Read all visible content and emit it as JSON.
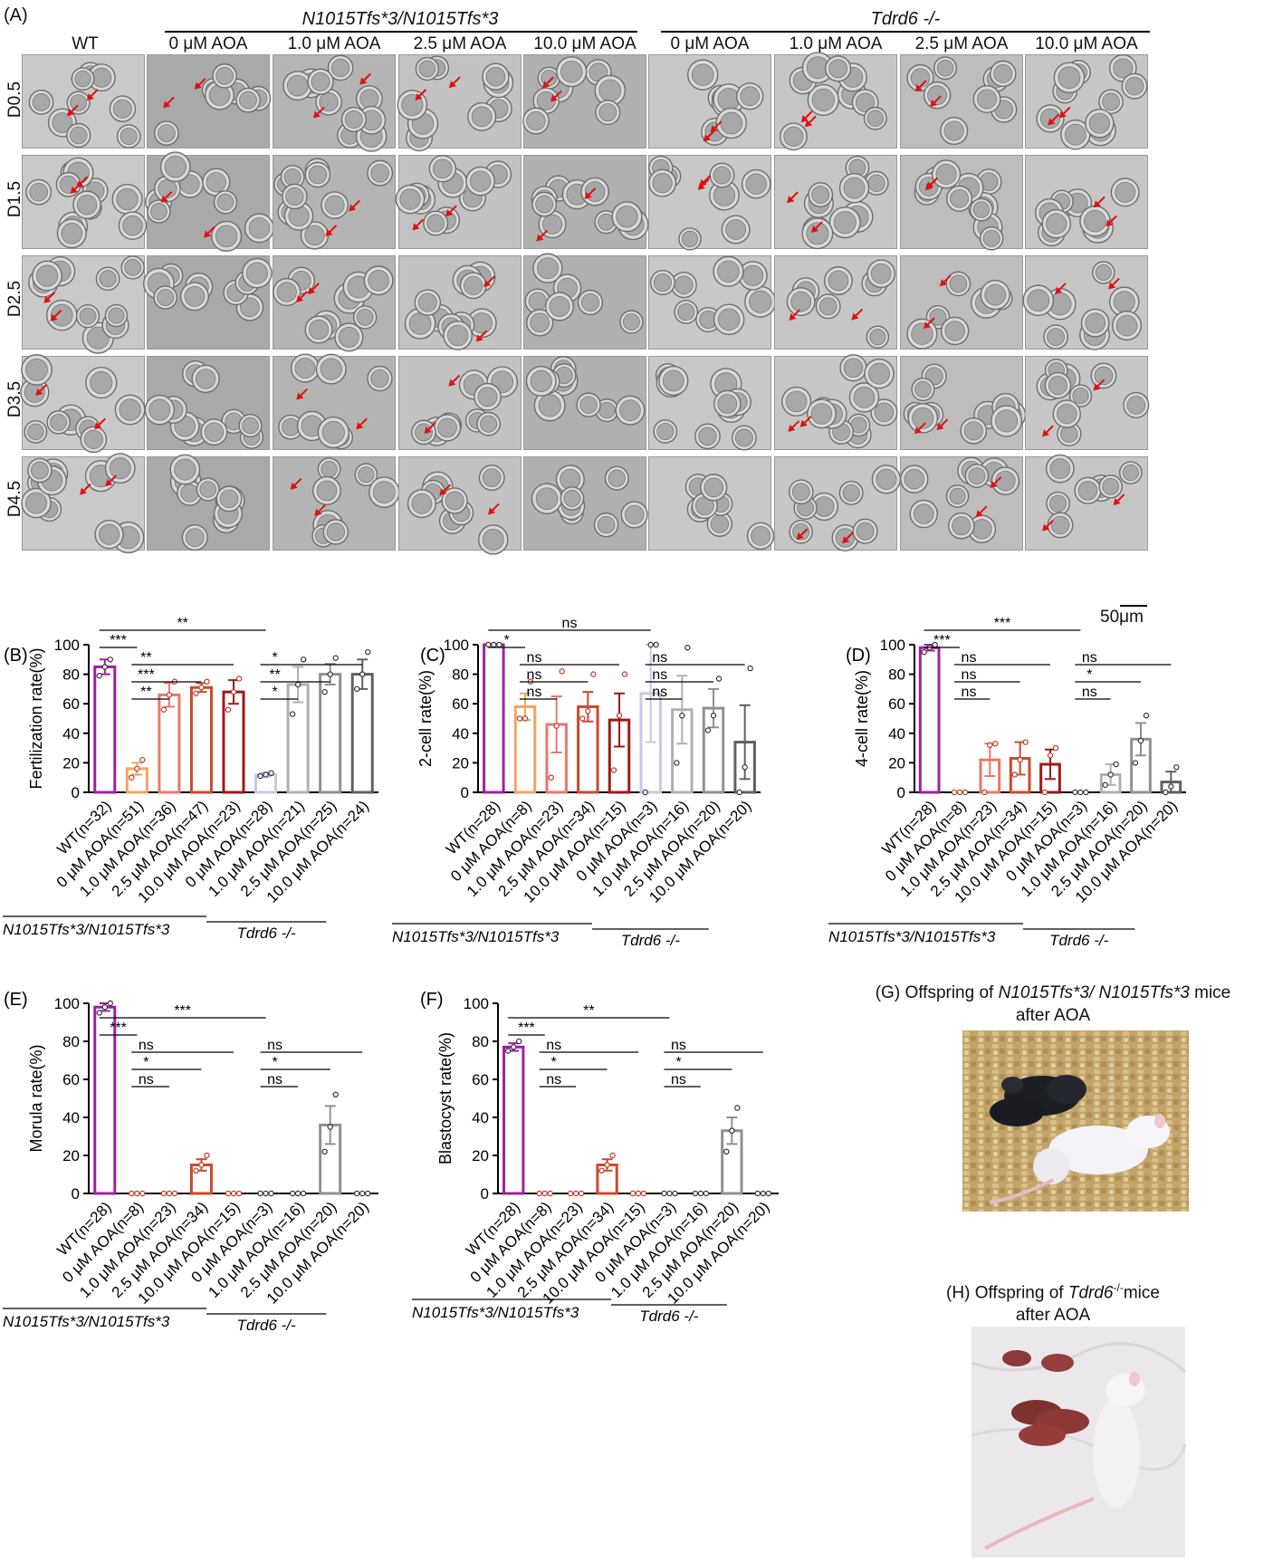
{
  "panel_a": {
    "label": "(A)",
    "col_wt": "WT",
    "group_mut": "N1015Tfs*3/N1015Tfs*3",
    "group_tdrd6": "Tdrd6 -/-",
    "concentrations": [
      "0 μM AOA",
      "1.0 μM AOA",
      "2.5 μM AOA",
      "10.0 μM AOA"
    ],
    "rows": [
      "D0.5",
      "D1.5",
      "D2.5",
      "D3.5",
      "D4.5"
    ],
    "scale_bar": "50μm"
  },
  "panel_g": {
    "label": "(G)",
    "caption_prefix": "Offspring of ",
    "caption_italic": "N1015Tfs*3/ N1015Tfs*3",
    "caption_suffix": " mice",
    "caption_line2": "after AOA"
  },
  "panel_h": {
    "label": "(H)",
    "caption_prefix": "Offspring of ",
    "caption_italic": "Tdrd6",
    "caption_sup": "-/-",
    "caption_suffix": "mice",
    "caption_line2": "after AOA"
  },
  "colors": {
    "wt": "#a020a0",
    "mut_0": "#f4a460",
    "mut_1": "#e8786a",
    "mut_2_5": "#cc4a2a",
    "mut_10": "#a01818",
    "tdrd_0": "#c8c8e6",
    "tdrd_1": "#b0b0b0",
    "tdrd_2_5": "#909090",
    "tdrd_10": "#606060",
    "dot_mut": "#c0392b"
  },
  "chart_data": [
    {
      "id": "B",
      "label": "(B)",
      "type": "bar",
      "ylabel": "Fertilization rate(%)",
      "ylim": [
        0,
        100
      ],
      "yticks": [
        0,
        20,
        40,
        60,
        80,
        100
      ],
      "categories": [
        "WT(n=32)",
        "0 μM AOA(n=51)",
        "1.0 μM AOA(n=36)",
        "2.5 μM AOA(n=47)",
        "10.0 μM AOA(n=23)",
        "0 μM AOA(n=28)",
        "1.0 μM AOA(n=21)",
        "2.5 μM AOA(n=25)",
        "10.0 μM AOA(n=24)"
      ],
      "values": [
        85,
        16,
        66,
        71,
        68,
        12,
        73,
        80,
        80
      ],
      "errors": [
        5,
        4,
        8,
        3,
        8,
        1.5,
        12,
        7,
        10
      ],
      "points": [
        [
          79,
          85,
          90
        ],
        [
          10,
          16,
          22
        ],
        [
          56,
          66,
          75
        ],
        [
          67,
          71,
          75
        ],
        [
          56,
          68,
          77
        ],
        [
          11,
          12,
          13
        ],
        [
          53,
          73,
          90
        ],
        [
          68,
          80,
          91
        ],
        [
          70,
          80,
          95
        ]
      ],
      "group_labels": [
        "N1015Tfs*3/N1015Tfs*3",
        "Tdrd6 -/-"
      ],
      "significance": [
        {
          "from": 0,
          "to": 1,
          "label": "***"
        },
        {
          "from": 0,
          "to": 5,
          "label": "**"
        },
        {
          "from": 1,
          "to": 2,
          "label": "**"
        },
        {
          "from": 1,
          "to": 3,
          "label": "***"
        },
        {
          "from": 1,
          "to": 4,
          "label": "**"
        },
        {
          "from": 5,
          "to": 6,
          "label": "*"
        },
        {
          "from": 5,
          "to": 7,
          "label": "**"
        },
        {
          "from": 5,
          "to": 8,
          "label": "*"
        }
      ]
    },
    {
      "id": "C",
      "label": "(C)",
      "type": "bar",
      "ylabel": "2-cell rate(%)",
      "ylim": [
        0,
        100
      ],
      "yticks": [
        0,
        20,
        40,
        60,
        80,
        100
      ],
      "categories": [
        "WT(n=28)",
        "0 μM AOA(n=8)",
        "1.0 μM AOA(n=23)",
        "2.5 μM AOA(n=34)",
        "10.0 μM AOA(n=15)",
        "0 μM AOA(n=3)",
        "1.0 μM AOA(n=16)",
        "2.5 μM AOA(n=20)",
        "10.0 μM AOA(n=20)"
      ],
      "values": [
        100,
        58,
        46,
        58,
        49,
        67,
        56,
        57,
        34
      ],
      "errors": [
        0,
        9,
        19,
        10,
        18,
        33,
        23,
        13,
        25
      ],
      "points": [
        [
          100,
          100,
          100
        ],
        [
          50,
          50,
          75
        ],
        [
          10,
          45,
          82
        ],
        [
          50,
          55,
          80
        ],
        [
          15,
          52,
          80
        ],
        [
          0,
          100,
          100
        ],
        [
          20,
          52,
          98
        ],
        [
          42,
          52,
          77
        ],
        [
          0,
          17,
          84
        ]
      ],
      "group_labels": [
        "N1015Tfs*3/N1015Tfs*3",
        "Tdrd6 -/-"
      ],
      "significance": [
        {
          "from": 0,
          "to": 1,
          "label": "*"
        },
        {
          "from": 1,
          "to": 2,
          "label": "ns"
        },
        {
          "from": 1,
          "to": 3,
          "label": "ns"
        },
        {
          "from": 1,
          "to": 4,
          "label": "ns"
        },
        {
          "from": 0,
          "to": 5,
          "label": "ns"
        },
        {
          "from": 5,
          "to": 6,
          "label": "ns"
        },
        {
          "from": 5,
          "to": 7,
          "label": "ns"
        },
        {
          "from": 5,
          "to": 8,
          "label": "ns"
        }
      ]
    },
    {
      "id": "D",
      "label": "(D)",
      "type": "bar",
      "ylabel": "4-cell rate(%)",
      "ylim": [
        0,
        100
      ],
      "yticks": [
        0,
        20,
        40,
        60,
        80,
        100
      ],
      "categories": [
        "WT(n=28)",
        "0 μM AOA(n=8)",
        "1.0 μM AOA(n=23)",
        "2.5 μM AOA(n=34)",
        "10.0 μM AOA(n=15)",
        "0 μM AOA(n=3)",
        "1.0 μM AOA(n=16)",
        "2.5 μM AOA(n=20)",
        "10.0 μM AOA(n=20)"
      ],
      "values": [
        98,
        0,
        22,
        23,
        19,
        0,
        12,
        36,
        7
      ],
      "errors": [
        2,
        0,
        11,
        11,
        10,
        0,
        7,
        11,
        7
      ],
      "points": [
        [
          95,
          98,
          100
        ],
        [
          0,
          0,
          0
        ],
        [
          0,
          32,
          33
        ],
        [
          12,
          22,
          34
        ],
        [
          0,
          25,
          30
        ],
        [
          0,
          0,
          0
        ],
        [
          5,
          12,
          19
        ],
        [
          20,
          35,
          52
        ],
        [
          0,
          4,
          17
        ]
      ],
      "group_labels": [
        "N1015Tfs*3/N1015Tfs*3",
        "Tdrd6 -/-"
      ],
      "significance": [
        {
          "from": 0,
          "to": 1,
          "label": "***"
        },
        {
          "from": 0,
          "to": 5,
          "label": "***"
        },
        {
          "from": 1,
          "to": 2,
          "label": "ns"
        },
        {
          "from": 1,
          "to": 3,
          "label": "ns"
        },
        {
          "from": 1,
          "to": 4,
          "label": "ns"
        },
        {
          "from": 5,
          "to": 6,
          "label": "ns"
        },
        {
          "from": 5,
          "to": 7,
          "label": "*"
        },
        {
          "from": 5,
          "to": 8,
          "label": "ns"
        }
      ]
    },
    {
      "id": "E",
      "label": "(E)",
      "type": "bar",
      "ylabel": "Morula rate(%)",
      "ylim": [
        0,
        100
      ],
      "yticks": [
        0,
        20,
        40,
        60,
        80,
        100
      ],
      "categories": [
        "WT(n=28)",
        "0 μM AOA(n=8)",
        "1.0 μM AOA(n=23)",
        "2.5 μM AOA(n=34)",
        "10.0 μM AOA(n=15)",
        "0 μM AOA(n=3)",
        "1.0 μM AOA(n=16)",
        "2.5 μM AOA(n=20)",
        "10.0 μM AOA(n=20)"
      ],
      "values": [
        98,
        0,
        0,
        15,
        0,
        0,
        0,
        36,
        0
      ],
      "errors": [
        2,
        0,
        0,
        3,
        0,
        0,
        0,
        10,
        0
      ],
      "points": [
        [
          95,
          98,
          100
        ],
        [
          0,
          0,
          0
        ],
        [
          0,
          0,
          0
        ],
        [
          12,
          15,
          20
        ],
        [
          0,
          0,
          0
        ],
        [
          0,
          0,
          0
        ],
        [
          0,
          0,
          0
        ],
        [
          22,
          35,
          52
        ],
        [
          0,
          0,
          0
        ]
      ],
      "group_labels": [
        "N1015Tfs*3/N1015Tfs*3",
        "Tdrd6 -/-"
      ],
      "significance": [
        {
          "from": 0,
          "to": 1,
          "label": "***"
        },
        {
          "from": 0,
          "to": 5,
          "label": "***"
        },
        {
          "from": 1,
          "to": 2,
          "label": "ns"
        },
        {
          "from": 1,
          "to": 3,
          "label": "*"
        },
        {
          "from": 1,
          "to": 4,
          "label": "ns"
        },
        {
          "from": 5,
          "to": 6,
          "label": "ns"
        },
        {
          "from": 5,
          "to": 7,
          "label": "*"
        },
        {
          "from": 5,
          "to": 8,
          "label": "ns"
        }
      ]
    },
    {
      "id": "F",
      "label": "(F)",
      "type": "bar",
      "ylabel": "Blastocyst rate(%)",
      "ylim": [
        0,
        100
      ],
      "yticks": [
        0,
        20,
        40,
        60,
        80,
        100
      ],
      "categories": [
        "WT(n=28)",
        "0 μM AOA(n=8)",
        "1.0 μM AOA(n=23)",
        "2.5 μM AOA(n=34)",
        "10.0 μM AOA(n=15)",
        "0 μM AOA(n=3)",
        "1.0 μM AOA(n=16)",
        "2.5 μM AOA(n=20)",
        "10.0 μM AOA(n=20)"
      ],
      "values": [
        77,
        0,
        0,
        15,
        0,
        0,
        0,
        33,
        0
      ],
      "errors": [
        2,
        0,
        0,
        3,
        0,
        0,
        0,
        7,
        0
      ],
      "points": [
        [
          75,
          77,
          80
        ],
        [
          0,
          0,
          0
        ],
        [
          0,
          0,
          0
        ],
        [
          12,
          15,
          20
        ],
        [
          0,
          0,
          0
        ],
        [
          0,
          0,
          0
        ],
        [
          0,
          0,
          0
        ],
        [
          22,
          33,
          45
        ],
        [
          0,
          0,
          0
        ]
      ],
      "group_labels": [
        "N1015Tfs*3/N1015Tfs*3",
        "Tdrd6 -/-"
      ],
      "significance": [
        {
          "from": 0,
          "to": 1,
          "label": "***"
        },
        {
          "from": 0,
          "to": 5,
          "label": "**"
        },
        {
          "from": 1,
          "to": 2,
          "label": "ns"
        },
        {
          "from": 1,
          "to": 3,
          "label": "*"
        },
        {
          "from": 1,
          "to": 4,
          "label": "ns"
        },
        {
          "from": 5,
          "to": 6,
          "label": "ns"
        },
        {
          "from": 5,
          "to": 7,
          "label": "*"
        },
        {
          "from": 5,
          "to": 8,
          "label": "ns"
        }
      ]
    }
  ]
}
